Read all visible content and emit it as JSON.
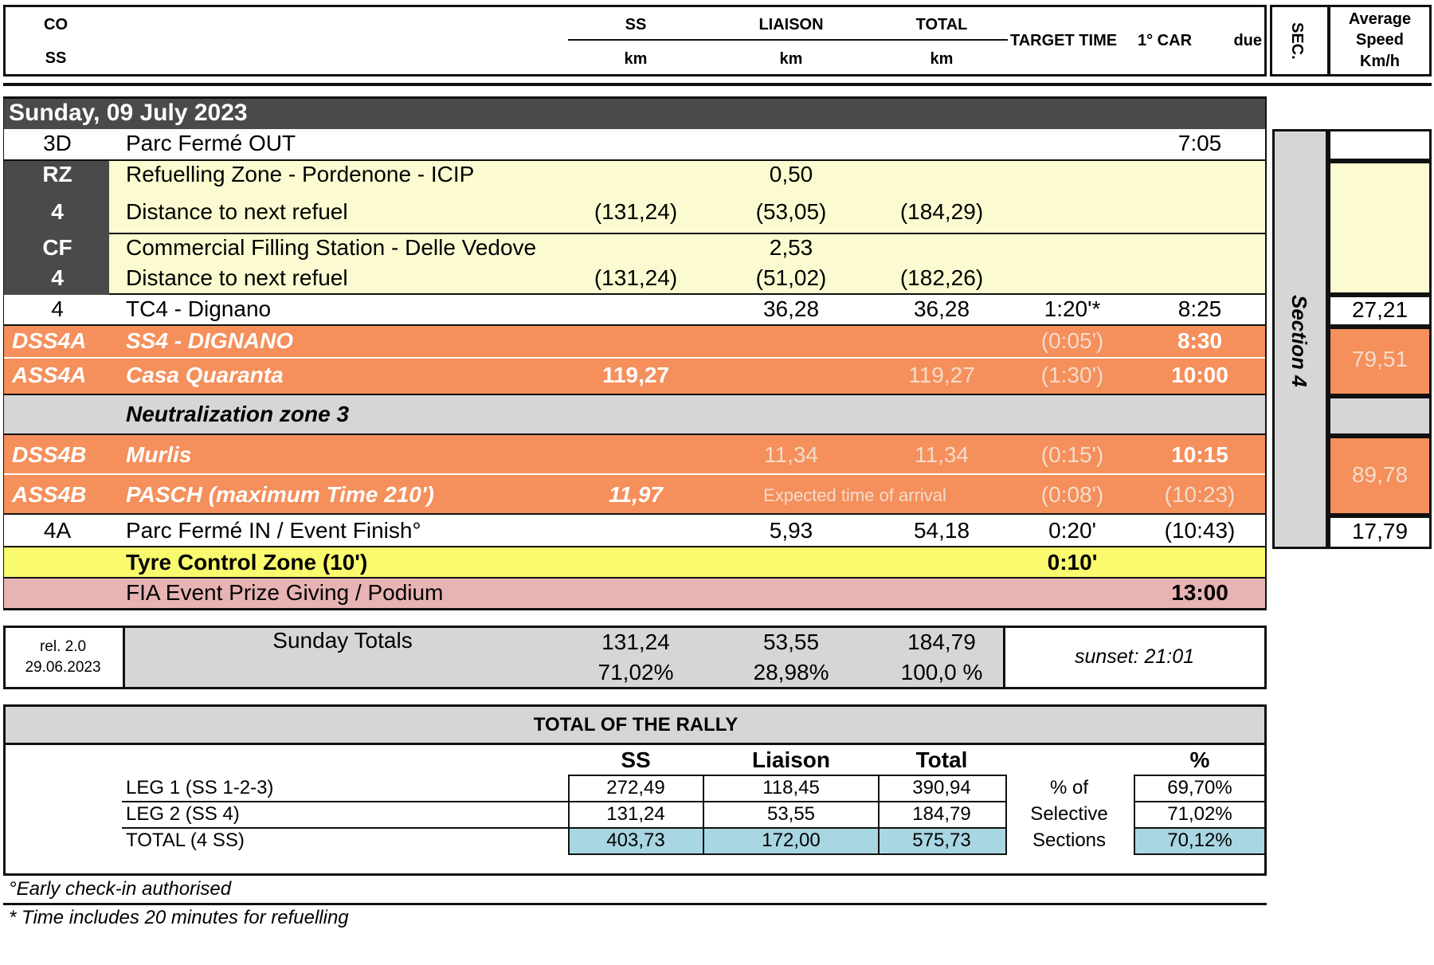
{
  "header": {
    "co": "CO",
    "ss": "SS",
    "col_ss": "SS",
    "col_liaison": "LIAISON",
    "col_total": "TOTAL",
    "unit_km": "km",
    "target_time": "TARGET TIME",
    "first_car": "1° CAR",
    "due": "due",
    "sec": "SEC.",
    "avg_speed_1": "Average",
    "avg_speed_2": "Speed",
    "avg_speed_3": "Km/h"
  },
  "day": {
    "title": "Sunday, 09 July 2023"
  },
  "rows": {
    "pf_out": {
      "code": "3D",
      "label": "Parc Fermé OUT",
      "due": "7:05"
    },
    "rz": {
      "code1": "RZ",
      "code2": "4",
      "label1": "Refuelling Zone - Pordenone - ICIP",
      "liaison1": "0,50",
      "label2": "Distance to next refuel",
      "ss2": "(131,24)",
      "liaison2": "(53,05)",
      "total2": "(184,29)"
    },
    "cf": {
      "code1": "CF",
      "code2": "4",
      "label1": "Commercial Filling Station - Delle Vedove",
      "liaison1": "2,53",
      "label2": "Distance to next refuel",
      "ss2": "(131,24)",
      "liaison2": "(51,02)",
      "total2": "(182,26)"
    },
    "tc4": {
      "code": "4",
      "label": "TC4 - Dignano",
      "liaison": "36,28",
      "total": "36,28",
      "target": "1:20'*",
      "due": "8:25",
      "speed": "27,21"
    },
    "dss4a": {
      "code": "DSS4A",
      "label": "SS4 - DIGNANO",
      "target": "(0:05')",
      "due": "8:30"
    },
    "ass4a": {
      "code": "ASS4A",
      "label": "Casa Quaranta",
      "ss": "119,27",
      "total": "119,27",
      "target": "(1:30')",
      "due": "10:00",
      "speed": "79,51"
    },
    "neutral": {
      "label": "Neutralization zone 3"
    },
    "dss4b": {
      "code": "DSS4B",
      "label": "Murlis",
      "liaison": "11,34",
      "total": "11,34",
      "target": "(0:15')",
      "due": "10:15"
    },
    "ass4b": {
      "code": "ASS4B",
      "label": "PASCH (maximum Time 210')",
      "ss": "11,97",
      "expected": "Expected time of arrival",
      "target": "(0:08')",
      "due": "(10:23)",
      "speed": "89,78"
    },
    "pf_in": {
      "code": "4A",
      "label": "Parc Fermé IN / Event Finish°",
      "liaison": "5,93",
      "total": "54,18",
      "target": "0:20'",
      "due": "(10:43)",
      "speed": "17,79"
    },
    "tyre": {
      "label": "Tyre Control Zone (10')",
      "target": "0:10'"
    },
    "podium": {
      "label": "FIA Event Prize Giving / Podium",
      "due": "13:00"
    }
  },
  "section_label": "Section 4",
  "totals": {
    "rel": "rel. 2.0",
    "date": "29.06.2023",
    "label": "Sunday Totals",
    "ss": "131,24",
    "ss_pct": "71,02%",
    "liaison": "53,55",
    "liaison_pct": "28,98%",
    "total": "184,79",
    "total_pct": "100,0 %",
    "sunset": "sunset: 21:01"
  },
  "rally": {
    "title": "TOTAL OF THE RALLY",
    "headers": {
      "ss": "SS",
      "liaison": "Liaison",
      "total": "Total",
      "pct": "%"
    },
    "legs": [
      {
        "label": "LEG 1 (SS 1-2-3)",
        "ss": "272,49",
        "liaison": "118,45",
        "total": "390,94",
        "pct": "69,70%"
      },
      {
        "label": "LEG 2 (SS 4)",
        "ss": "131,24",
        "liaison": "53,55",
        "total": "184,79",
        "pct": "71,02%"
      },
      {
        "label": "TOTAL (4 SS)",
        "ss": "403,73",
        "liaison": "172,00",
        "total": "575,73",
        "pct": "70,12%"
      }
    ],
    "selective_1": "% of",
    "selective_2": "Selective",
    "selective_3": "Sections"
  },
  "notes": {
    "early": "°Early check-in authorised",
    "refuel": "* Time includes 20 minutes for refuelling"
  },
  "colors": {
    "dark": "#4a4a4a",
    "yellow": "#fbfad0",
    "orange": "#f58f5b",
    "grey": "#d6d6d6",
    "tyre": "#fafa6e",
    "podium": "#e8b3b3",
    "blue": "#a8d6e2"
  }
}
